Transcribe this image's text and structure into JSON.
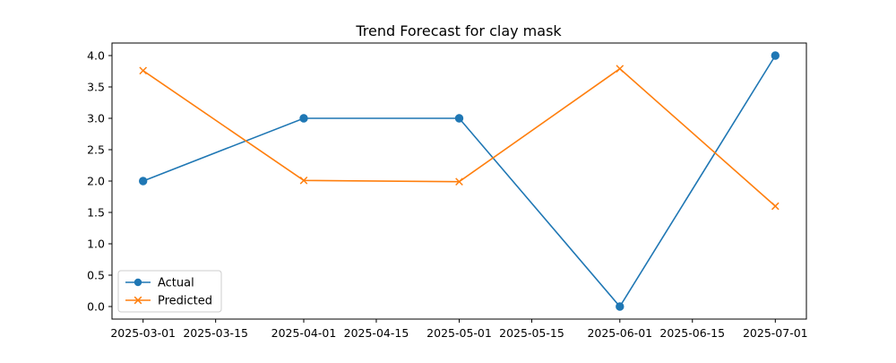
{
  "chart_data": {
    "type": "line",
    "title": "Trend Forecast for clay mask",
    "xlabel": "",
    "ylabel": "",
    "x_ticks": [
      "2025-03-01",
      "2025-03-15",
      "2025-04-01",
      "2025-04-15",
      "2025-05-01",
      "2025-05-15",
      "2025-06-01",
      "2025-06-15",
      "2025-07-01"
    ],
    "y_ticks": [
      "0.0",
      "0.5",
      "1.0",
      "1.5",
      "2.0",
      "2.5",
      "3.0",
      "3.5",
      "4.0"
    ],
    "xlim": [
      "2025-02-23",
      "2025-07-07"
    ],
    "ylim": [
      -0.2,
      4.2
    ],
    "grid": false,
    "legend_position": "lower left",
    "series": [
      {
        "name": "Actual",
        "color": "#1f77b4",
        "marker": "circle",
        "x": [
          "2025-03-01",
          "2025-04-01",
          "2025-05-01",
          "2025-06-01",
          "2025-07-01"
        ],
        "values": [
          2.0,
          3.0,
          3.0,
          0.0,
          4.0
        ]
      },
      {
        "name": "Predicted",
        "color": "#ff7f0e",
        "marker": "x",
        "x": [
          "2025-03-01",
          "2025-04-01",
          "2025-05-01",
          "2025-06-01",
          "2025-07-01"
        ],
        "values": [
          3.76,
          2.01,
          1.99,
          3.79,
          1.6
        ]
      }
    ]
  }
}
